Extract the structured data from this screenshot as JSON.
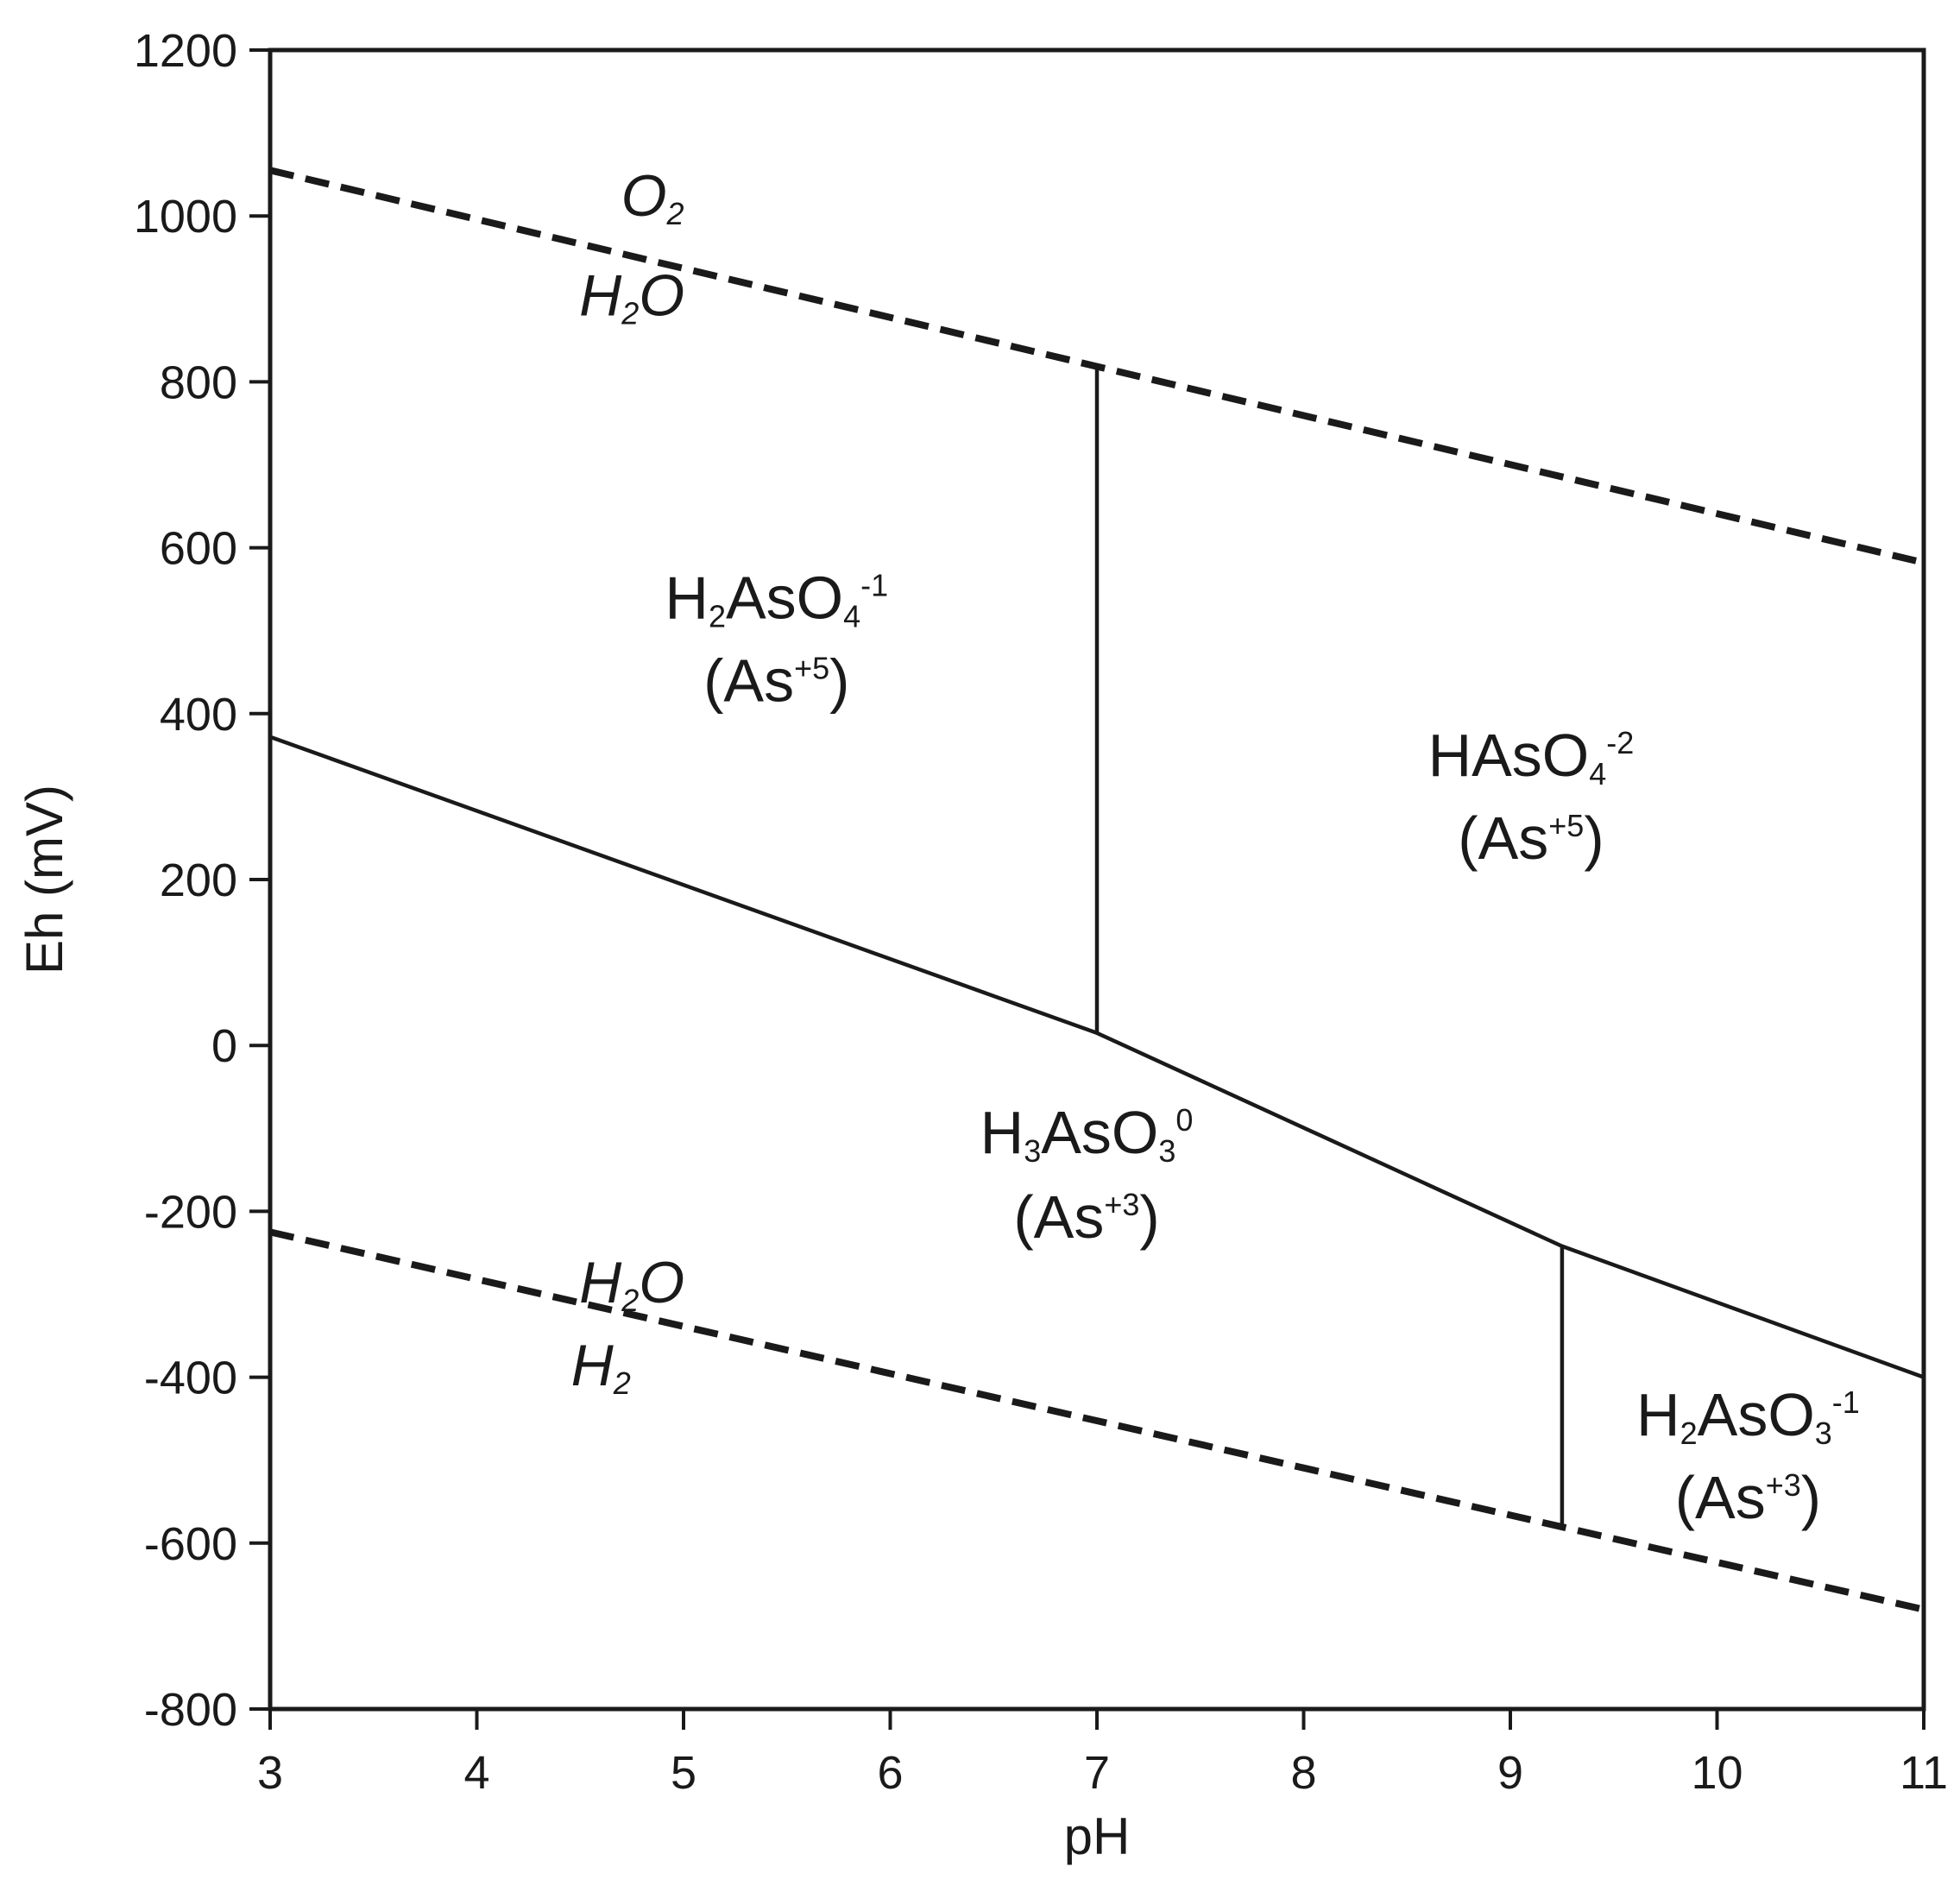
{
  "chart_data": {
    "type": "line",
    "xlabel": "pH",
    "ylabel": "Eh (mV)",
    "xlim": [
      3,
      11
    ],
    "ylim": [
      -800,
      1200
    ],
    "x_ticks": [
      3,
      4,
      5,
      6,
      7,
      8,
      9,
      10,
      11
    ],
    "y_ticks": [
      -800,
      -600,
      -400,
      -200,
      0,
      200,
      400,
      600,
      800,
      1000,
      1200
    ],
    "grid": false,
    "legend": "none",
    "series": [
      {
        "style": "dashed",
        "x": [
          3,
          11
        ],
        "y": [
          1055,
          582
        ]
      },
      {
        "style": "dashed",
        "x": [
          3,
          11
        ],
        "y": [
          -225,
          -680
        ]
      },
      {
        "style": "solid",
        "x": [
          3,
          7,
          9.25,
          11
        ],
        "y": [
          372,
          15,
          -242,
          -400
        ]
      },
      {
        "style": "solid",
        "x": [
          7,
          7
        ],
        "y": [
          15,
          815
        ]
      },
      {
        "style": "solid",
        "x": [
          9.25,
          9.25
        ],
        "y": [
          -242,
          -578
        ]
      }
    ],
    "annotations": [
      {
        "id": "o2",
        "parts": [
          [
            "O",
            ""
          ],
          [
            "2",
            "sub"
          ]
        ],
        "x": 4.85,
        "y": 1000,
        "italic": false,
        "size": "water"
      },
      {
        "id": "h2o_upper",
        "parts": [
          [
            "H",
            ""
          ],
          [
            "2",
            "sub"
          ],
          [
            "O",
            ""
          ]
        ],
        "x": 4.75,
        "y": 880,
        "italic": true,
        "size": "water"
      },
      {
        "id": "h2aso4",
        "parts": [
          [
            "H",
            ""
          ],
          [
            "2",
            "sub"
          ],
          [
            "AsO",
            ""
          ],
          [
            "4",
            "sub"
          ],
          [
            "-1",
            "sup"
          ]
        ],
        "x": 5.45,
        "y": 515,
        "italic": false,
        "size": "species"
      },
      {
        "id": "h2aso4_state",
        "parts": [
          [
            "(As",
            ""
          ],
          [
            "+5",
            "sup"
          ],
          [
            ")",
            ""
          ]
        ],
        "x": 5.45,
        "y": 415,
        "italic": false,
        "size": "species"
      },
      {
        "id": "haso4",
        "parts": [
          [
            "HAsO",
            ""
          ],
          [
            "4",
            "sub"
          ],
          [
            "-2",
            "sup"
          ]
        ],
        "x": 9.1,
        "y": 325,
        "italic": false,
        "size": "species"
      },
      {
        "id": "haso4_state",
        "parts": [
          [
            "(As",
            ""
          ],
          [
            "+5",
            "sup"
          ],
          [
            ")",
            ""
          ]
        ],
        "x": 9.1,
        "y": 225,
        "italic": false,
        "size": "species"
      },
      {
        "id": "h3aso3",
        "parts": [
          [
            "H",
            ""
          ],
          [
            "3",
            "sub"
          ],
          [
            "AsO",
            ""
          ],
          [
            "3",
            "sub"
          ],
          [
            "0",
            "sup"
          ]
        ],
        "x": 6.95,
        "y": -130,
        "italic": false,
        "size": "species"
      },
      {
        "id": "h3aso3_state",
        "parts": [
          [
            "(As",
            ""
          ],
          [
            "+3",
            "sup"
          ],
          [
            ")",
            ""
          ]
        ],
        "x": 6.95,
        "y": -232,
        "italic": false,
        "size": "species"
      },
      {
        "id": "h2o_lower",
        "parts": [
          [
            "H",
            ""
          ],
          [
            "2",
            "sub"
          ],
          [
            "O",
            ""
          ]
        ],
        "x": 4.75,
        "y": -310,
        "italic": true,
        "size": "water"
      },
      {
        "id": "h2",
        "parts": [
          [
            "H",
            ""
          ],
          [
            "2",
            "sub"
          ]
        ],
        "x": 4.6,
        "y": -410,
        "italic": true,
        "size": "water"
      },
      {
        "id": "h2aso3",
        "parts": [
          [
            "H",
            ""
          ],
          [
            "2",
            "sub"
          ],
          [
            "AsO",
            ""
          ],
          [
            "3",
            "sub"
          ],
          [
            "-1",
            "sup"
          ]
        ],
        "x": 10.15,
        "y": -470,
        "italic": false,
        "size": "species"
      },
      {
        "id": "h2aso3_state",
        "parts": [
          [
            "(As",
            ""
          ],
          [
            "+3",
            "sup"
          ],
          [
            ")",
            ""
          ]
        ],
        "x": 10.15,
        "y": -570,
        "italic": false,
        "size": "species"
      }
    ]
  }
}
